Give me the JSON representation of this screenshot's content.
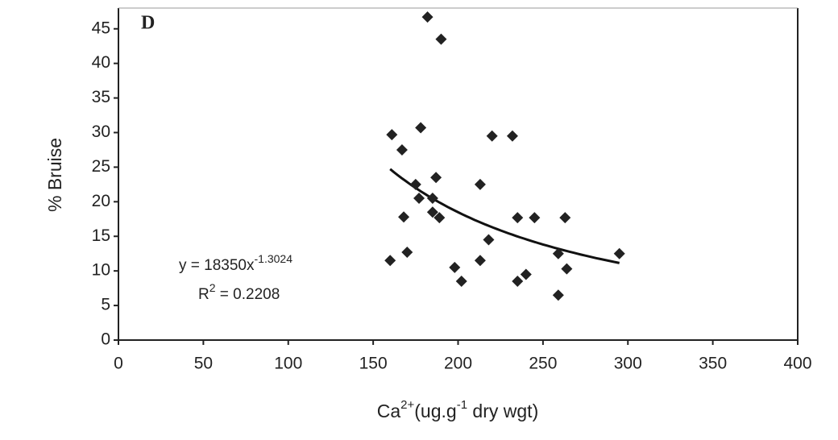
{
  "chart_data": {
    "type": "scatter",
    "panel_label": "D",
    "x_label": {
      "base": "Ca",
      "sup": "2+",
      "mid": "(ug.g",
      "sup2": "-1",
      "end": " dry wgt)"
    },
    "y_label": "% Bruise",
    "x": [
      160,
      161,
      167,
      170,
      168,
      175,
      177,
      178,
      182,
      185,
      185,
      187,
      189,
      190,
      198,
      202,
      213,
      213,
      218,
      220,
      232,
      235,
      235,
      240,
      245,
      259,
      259,
      263,
      264,
      295
    ],
    "series": [
      {
        "color": "#222222",
        "values": [
          11.5,
          29.7,
          27.5,
          12.7,
          17.8,
          22.5,
          20.5,
          30.7,
          46.7,
          18.5,
          20.5,
          23.5,
          17.7,
          43.5,
          10.5,
          8.5,
          22.5,
          11.5,
          14.5,
          29.5,
          29.5,
          17.7,
          8.5,
          9.5,
          17.7,
          12.5,
          6.5,
          17.7,
          10.3,
          12.5
        ]
      }
    ],
    "fit": {
      "coefficient": 18350,
      "exponent": -1.3024,
      "r2": 0.2208,
      "equation": {
        "prefix": "y = 18350x",
        "sup": "-1.3024"
      },
      "r_squared": {
        "prefix": "R",
        "sup": "2",
        "rest": " = 0.2208"
      }
    },
    "xlim": [
      0,
      400
    ],
    "xticks": [
      0,
      50,
      100,
      150,
      200,
      250,
      300,
      350,
      400
    ],
    "ylim": [
      0,
      48
    ],
    "yticks": [
      0,
      5,
      10,
      15,
      20,
      25,
      30,
      35,
      40,
      45
    ]
  }
}
